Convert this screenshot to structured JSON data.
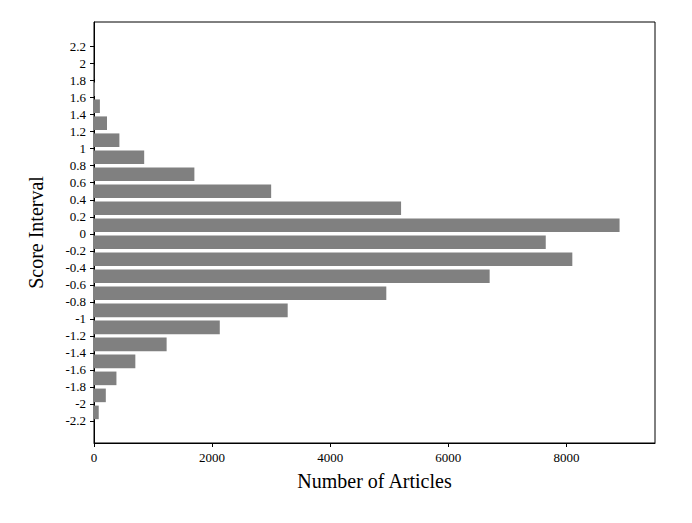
{
  "chart_data": {
    "type": "histogram",
    "orientation": "horizontal",
    "xlabel": "Number of Articles",
    "ylabel": "Score Interval",
    "bins": [
      -2.2,
      -2,
      -1.8,
      -1.6,
      -1.4,
      -1.2,
      -1,
      -0.8,
      -0.6,
      -0.4,
      -0.2,
      0,
      0.2,
      0.4,
      0.6,
      0.8,
      1,
      1.2,
      1.4,
      1.6,
      1.8,
      2,
      2.2
    ],
    "counts": [
      80,
      200,
      380,
      700,
      1230,
      2130,
      3280,
      4950,
      6700,
      8100,
      7650,
      8900,
      5200,
      3000,
      1700,
      850,
      430,
      220,
      100,
      15,
      3,
      0
    ],
    "color": "#808080",
    "xlim": [
      0,
      9500
    ],
    "xticks": [
      0,
      2000,
      4000,
      6000,
      8000
    ],
    "ylim": [
      -2.46,
      2.49
    ],
    "yticks": [
      -2.2,
      -2,
      -1.8,
      -1.6,
      -1.4,
      -1.2,
      -1,
      -0.8,
      -0.6,
      -0.4,
      -0.2,
      0,
      0.2,
      0.4,
      0.6,
      0.8,
      1,
      1.2,
      1.4,
      1.6,
      1.8,
      2,
      2.2
    ],
    "grid": false
  }
}
